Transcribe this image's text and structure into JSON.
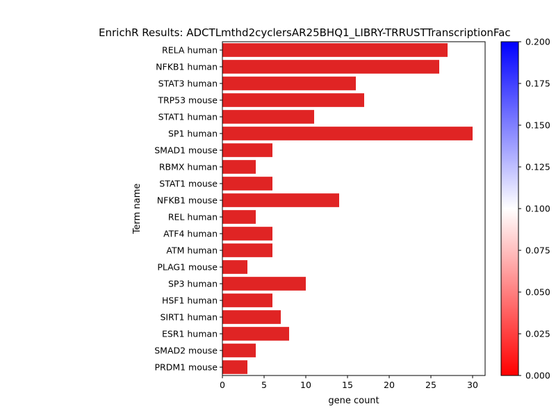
{
  "chart_data": {
    "type": "bar",
    "orientation": "horizontal",
    "title": "EnrichR Results: ADCTLmthd2cyclersAR25BHQ1_LIBRY-TRRUSTTranscriptionFac",
    "xlabel": "gene count",
    "ylabel": "Term name",
    "xlim": [
      0,
      31.5
    ],
    "xticks": [
      0,
      5,
      10,
      15,
      20,
      25,
      30
    ],
    "categories": [
      "RELA human",
      "NFKB1 human",
      "STAT3 human",
      "TRP53 mouse",
      "STAT1 human",
      "SP1 human",
      "SMAD1 mouse",
      "RBMX human",
      "STAT1 mouse",
      "NFKB1 mouse",
      "REL human",
      "ATF4 human",
      "ATM human",
      "PLAG1 mouse",
      "SP3 human",
      "HSF1 human",
      "SIRT1 human",
      "ESR1 human",
      "SMAD2 mouse",
      "PRDM1 mouse"
    ],
    "values": [
      27,
      26,
      16,
      17,
      11,
      30,
      6,
      4,
      6,
      14,
      4,
      6,
      6,
      3,
      10,
      6,
      7,
      8,
      4,
      3
    ],
    "bar_color": "#e02424",
    "grid": false,
    "colorbar": {
      "range": [
        0,
        0.2
      ],
      "ticks": [
        "0.000",
        "0.025",
        "0.050",
        "0.075",
        "0.100",
        "0.125",
        "0.150",
        "0.175",
        "0.200"
      ],
      "colors": [
        "#ff0000",
        "#ffffff",
        "#0000ff"
      ]
    }
  }
}
